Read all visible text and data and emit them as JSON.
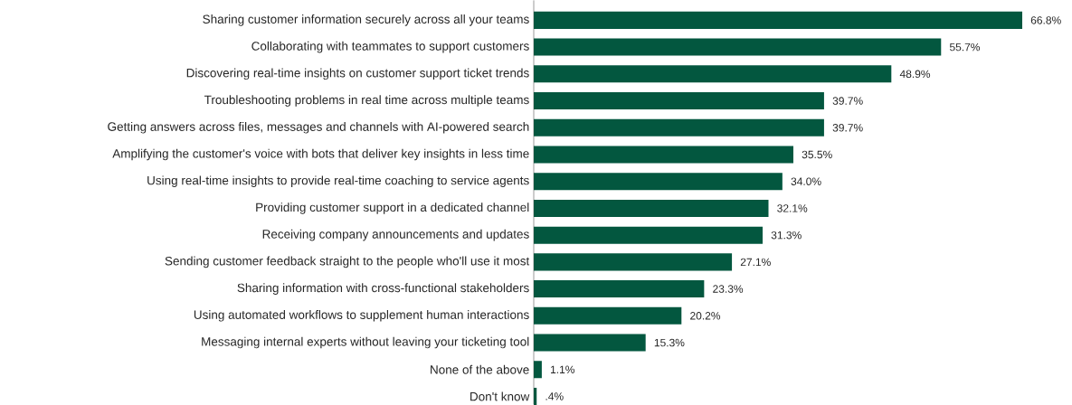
{
  "chart_data": {
    "type": "bar",
    "orientation": "horizontal",
    "color": "#03573f",
    "categories": [
      "Sharing customer information securely across all your teams",
      "Collaborating with teammates to support customers",
      "Discovering real-time insights on customer support ticket trends",
      "Troubleshooting problems in real time across multiple teams",
      "Getting answers across files, messages and channels with AI-powered search",
      "Amplifying the customer's voice with bots that deliver key insights in less time",
      "Using real-time insights to provide real-time coaching to service agents",
      "Providing customer support in a dedicated channel",
      "Receiving company announcements and updates",
      "Sending customer feedback straight to the people who'll use it most",
      "Sharing information with cross-functional stakeholders",
      "Using automated workflows to supplement human interactions",
      "Messaging internal experts without leaving your ticketing tool",
      "None of the above",
      "Don't know"
    ],
    "values": [
      66.8,
      55.7,
      48.9,
      39.7,
      39.7,
      35.5,
      34.0,
      32.1,
      31.3,
      27.1,
      23.3,
      20.2,
      15.3,
      1.1,
      0.4
    ],
    "value_labels": [
      "66.8%",
      "55.7%",
      "48.9%",
      "39.7%",
      "39.7%",
      "35.5%",
      "34.0%",
      "32.1%",
      "31.3%",
      "27.1%",
      "23.3%",
      "20.2%",
      "15.3%",
      "1.1%",
      ".4%"
    ]
  }
}
